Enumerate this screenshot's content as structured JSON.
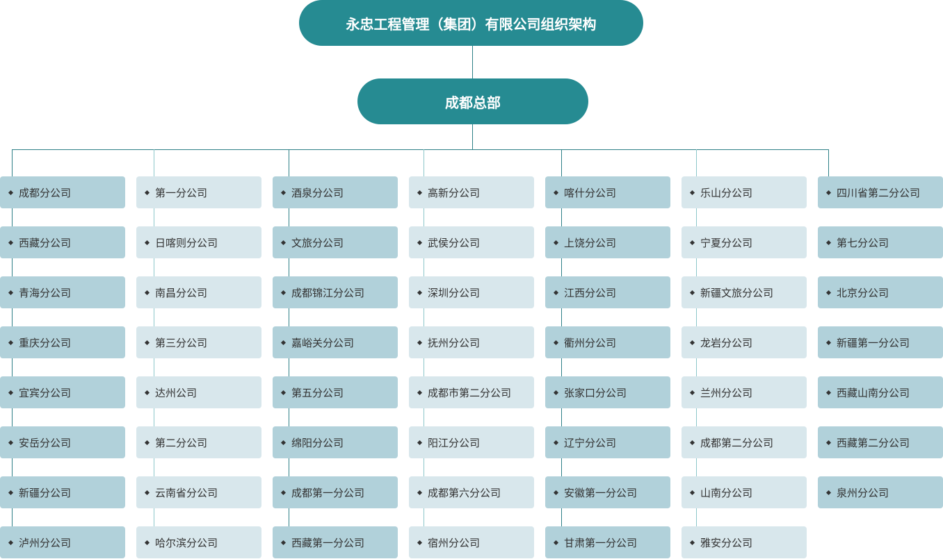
{
  "title": "永忠工程管理（集团）有限公司组织架构",
  "headquarters": "成都总部",
  "colors": {
    "pill": "#268b92",
    "dark_box": "#b1d1da",
    "light_box": "#d8e7ec"
  },
  "columns": [
    [
      "成都分公司",
      "西藏分公司",
      "青海分公司",
      "重庆分公司",
      "宜宾分公司",
      "安岳分公司",
      "新疆分公司",
      "泸州分公司"
    ],
    [
      "第一分公司",
      "日喀则分公司",
      "南昌分公司",
      "第三分公司",
      "达州公司",
      "第二分公司",
      "云南省分公司",
      "哈尔滨分公司"
    ],
    [
      "酒泉分公司",
      "文旅分公司",
      "成都锦江分公司",
      "嘉峪关分公司",
      "第五分公司",
      "绵阳分公司",
      "成都第一分公司",
      "西藏第一分公司"
    ],
    [
      "高新分公司",
      "武侯分公司",
      "深圳分公司",
      "抚州分公司",
      "成都市第二分公司",
      "阳江分公司",
      "成都第六分公司",
      "宿州分公司"
    ],
    [
      "喀什分公司",
      "上饶分公司",
      "江西分公司",
      "衢州分公司",
      "张家口分公司",
      "辽宁分公司",
      "安徽第一分公司",
      "甘肃第一分公司"
    ],
    [
      "乐山分公司",
      "宁夏分公司",
      "新疆文旅分公司",
      "龙岩分公司",
      "兰州分公司",
      "成都第二分公司",
      "山南分公司",
      "雅安分公司"
    ],
    [
      "四川省第二分公司",
      "第七分公司",
      "北京分公司",
      "新疆第一分公司",
      "西藏山南分公司",
      "西藏第二分公司",
      "泉州分公司"
    ]
  ]
}
